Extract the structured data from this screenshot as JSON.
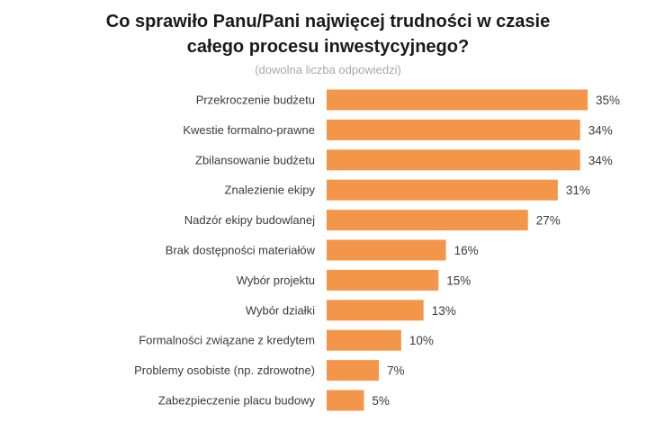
{
  "chart_data": {
    "type": "bar",
    "orientation": "horizontal",
    "title_line1": "Co sprawiło Panu/Pani najwięcej trudności w czasie",
    "title_line2": "całego procesu inwestycyjnego?",
    "subtitle": "(dowolna liczba odpowiedzi)",
    "categories": [
      "Przekroczenie budżetu",
      "Kwestie formalno-prawne",
      "Zbilansowanie budżetu",
      "Znalezienie ekipy",
      "Nadzór ekipy budowlanej",
      "Brak dostępności materiałów",
      "Wybór projektu",
      "Wybór działki",
      "Formalności związane z kredytem",
      "Problemy osobiste (np. zdrowotne)",
      "Zabezpieczenie placu budowy"
    ],
    "values": [
      35,
      34,
      34,
      31,
      27,
      16,
      15,
      13,
      10,
      7,
      5
    ],
    "value_labels": [
      "35%",
      "34%",
      "34%",
      "31%",
      "27%",
      "16%",
      "15%",
      "13%",
      "10%",
      "7%",
      "5%"
    ],
    "unit": "%",
    "xlim": [
      0,
      35
    ],
    "bar_color": "#F4964A",
    "grid": false
  }
}
